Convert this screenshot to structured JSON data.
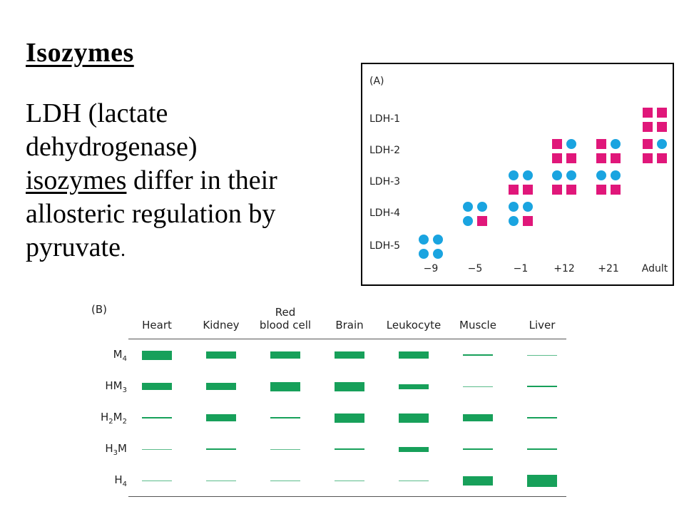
{
  "title": "Isozymes",
  "body": {
    "line1": "LDH (lactate",
    "line2": "dehydrogenase)",
    "line3_u": "isozymes",
    "line3_rest": " differ in their",
    "line4": "allosteric regulation by",
    "line5": "pyruvate",
    "line5_end": "."
  },
  "panel_a": {
    "label": "(A)",
    "rows": [
      "LDH-1",
      "LDH-2",
      "LDH-3",
      "LDH-4",
      "LDH-5"
    ],
    "columns": [
      "−9",
      "−5",
      "−1",
      "+12",
      "+21",
      "Adult"
    ],
    "legend_colors": {
      "H": "#e0177a",
      "M": "#1aa4e0"
    },
    "cells": [
      {
        "col": 0,
        "row": 4,
        "subunits": [
          "M",
          "M",
          "M",
          "M"
        ]
      },
      {
        "col": 1,
        "row": 3,
        "subunits": [
          "M",
          "M",
          "M",
          "H"
        ]
      },
      {
        "col": 2,
        "row": 3,
        "subunits": [
          "M",
          "M",
          "M",
          "H"
        ]
      },
      {
        "col": 2,
        "row": 2,
        "subunits": [
          "M",
          "M",
          "H",
          "H"
        ]
      },
      {
        "col": 3,
        "row": 1,
        "subunits": [
          "H",
          "M",
          "H",
          "H"
        ]
      },
      {
        "col": 3,
        "row": 2,
        "subunits": [
          "M",
          "M",
          "H",
          "H"
        ]
      },
      {
        "col": 4,
        "row": 1,
        "subunits": [
          "H",
          "M",
          "H",
          "H"
        ]
      },
      {
        "col": 4,
        "row": 2,
        "subunits": [
          "M",
          "M",
          "H",
          "H"
        ]
      },
      {
        "col": 5,
        "row": 0,
        "subunits": [
          "H",
          "H",
          "H",
          "H"
        ]
      },
      {
        "col": 5,
        "row": 1,
        "subunits": [
          "H",
          "M",
          "H",
          "H"
        ]
      }
    ]
  },
  "panel_b": {
    "label": "(B)",
    "columns": [
      {
        "line1": "",
        "line2": "Heart"
      },
      {
        "line1": "",
        "line2": "Kidney"
      },
      {
        "line1": "Red",
        "line2": "blood cell"
      },
      {
        "line1": "",
        "line2": "Brain"
      },
      {
        "line1": "",
        "line2": "Leukocyte"
      },
      {
        "line1": "",
        "line2": "Muscle"
      },
      {
        "line1": "",
        "line2": "Liver"
      }
    ],
    "rows": [
      {
        "base": "M",
        "sub1": "4",
        "mid": "",
        "sub2": ""
      },
      {
        "base": "HM",
        "sub1": "3",
        "mid": "",
        "sub2": ""
      },
      {
        "base": "H",
        "sub1": "2",
        "mid": "M",
        "sub2": "2"
      },
      {
        "base": "H",
        "sub1": "3",
        "mid": "M",
        "sub2": ""
      },
      {
        "base": "H",
        "sub1": "4",
        "mid": "",
        "sub2": ""
      }
    ],
    "bar_color": "#17a05a",
    "levels": [
      [
        4,
        3,
        3,
        3,
        3,
        1,
        0
      ],
      [
        3,
        3,
        4,
        4,
        2,
        0,
        1
      ],
      [
        1,
        3,
        1,
        4,
        4,
        3,
        1
      ],
      [
        0,
        1,
        0,
        1,
        2,
        1,
        1
      ],
      [
        0,
        0,
        0,
        0,
        0,
        4,
        5
      ]
    ]
  }
}
